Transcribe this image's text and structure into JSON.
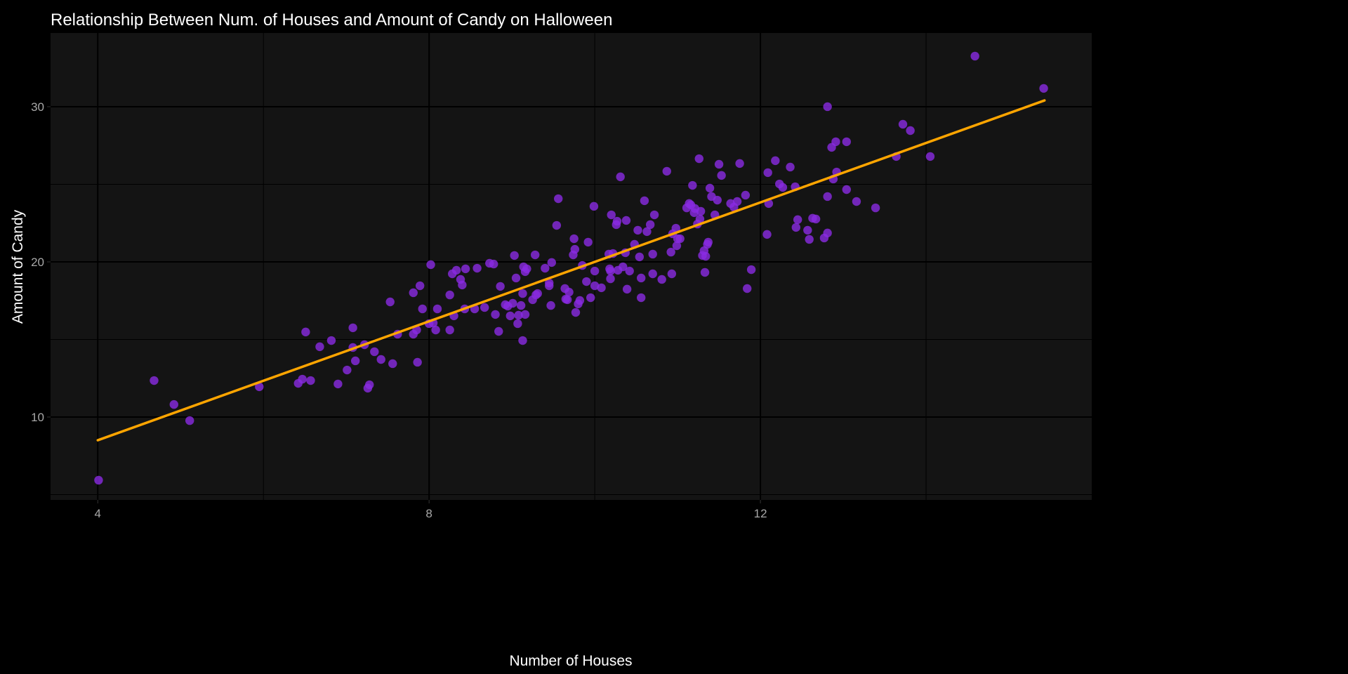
{
  "chart_data": {
    "type": "scatter",
    "title": "Relationship Between Num. of Houses and Amount of Candy on Halloween",
    "xlabel": "Number of Houses",
    "ylabel": "Amount of Candy",
    "xlim": [
      3.43,
      16.0
    ],
    "ylim": [
      4.66,
      34.75
    ],
    "x_ticks": [
      4,
      8,
      12
    ],
    "x_tick_labels": [
      "4",
      "8",
      "12"
    ],
    "x_minor": [
      6,
      10,
      14
    ],
    "y_ticks": [
      10,
      20,
      30
    ],
    "y_tick_labels": [
      "10",
      "20",
      "30"
    ],
    "y_minor": [
      5,
      15,
      25
    ],
    "grid": true,
    "colors": {
      "background": "#000000",
      "panel": "#141414",
      "grid": "#000000",
      "points": "#8a2be2",
      "line": "#ffa500"
    },
    "trend_line": {
      "type": "linear",
      "intercept": 0.84,
      "slope": 1.916,
      "x_range": [
        4.0,
        15.43
      ]
    },
    "points": [
      [
        4.01,
        5.93
      ],
      [
        4.68,
        12.35
      ],
      [
        4.92,
        10.81
      ],
      [
        5.11,
        9.77
      ],
      [
        5.95,
        11.95
      ],
      [
        6.42,
        12.17
      ],
      [
        6.47,
        12.44
      ],
      [
        6.51,
        15.48
      ],
      [
        6.57,
        12.35
      ],
      [
        6.68,
        14.53
      ],
      [
        6.82,
        14.93
      ],
      [
        6.9,
        12.13
      ],
      [
        7.01,
        13.03
      ],
      [
        7.08,
        15.75
      ],
      [
        7.08,
        14.48
      ],
      [
        7.11,
        13.62
      ],
      [
        7.22,
        14.66
      ],
      [
        7.26,
        11.86
      ],
      [
        7.28,
        12.08
      ],
      [
        7.34,
        14.21
      ],
      [
        7.42,
        13.71
      ],
      [
        7.53,
        17.42
      ],
      [
        7.56,
        13.44
      ],
      [
        7.62,
        15.34
      ],
      [
        7.81,
        18.01
      ],
      [
        7.81,
        15.34
      ],
      [
        7.85,
        15.61
      ],
      [
        7.86,
        13.53
      ],
      [
        7.89,
        18.46
      ],
      [
        7.92,
        16.97
      ],
      [
        8.0,
        16.02
      ],
      [
        8.02,
        19.82
      ],
      [
        8.05,
        16.06
      ],
      [
        8.08,
        15.61
      ],
      [
        8.1,
        16.97
      ],
      [
        8.25,
        17.87
      ],
      [
        8.25,
        15.61
      ],
      [
        8.28,
        19.23
      ],
      [
        8.3,
        16.52
      ],
      [
        8.33,
        19.46
      ],
      [
        8.38,
        18.87
      ],
      [
        8.4,
        18.51
      ],
      [
        8.43,
        16.97
      ],
      [
        8.44,
        19.55
      ],
      [
        8.55,
        16.97
      ],
      [
        8.58,
        19.59
      ],
      [
        8.67,
        17.06
      ],
      [
        8.73,
        19.91
      ],
      [
        8.78,
        19.86
      ],
      [
        8.8,
        16.61
      ],
      [
        8.84,
        15.52
      ],
      [
        8.86,
        18.42
      ],
      [
        8.92,
        17.24
      ],
      [
        8.95,
        17.15
      ],
      [
        8.98,
        16.52
      ],
      [
        9.01,
        17.33
      ],
      [
        9.03,
        20.41
      ],
      [
        9.05,
        18.96
      ],
      [
        9.07,
        16.02
      ],
      [
        9.08,
        16.56
      ],
      [
        9.11,
        17.19
      ],
      [
        9.13,
        14.93
      ],
      [
        9.13,
        17.96
      ],
      [
        9.14,
        19.68
      ],
      [
        9.16,
        16.61
      ],
      [
        9.16,
        19.37
      ],
      [
        9.18,
        19.55
      ],
      [
        9.25,
        17.56
      ],
      [
        9.28,
        20.45
      ],
      [
        9.29,
        17.87
      ],
      [
        9.31,
        17.96
      ],
      [
        9.4,
        19.59
      ],
      [
        9.45,
        18.64
      ],
      [
        9.45,
        18.46
      ],
      [
        9.47,
        17.19
      ],
      [
        9.48,
        19.96
      ],
      [
        9.54,
        22.35
      ],
      [
        9.56,
        24.07
      ],
      [
        9.64,
        18.28
      ],
      [
        9.65,
        17.6
      ],
      [
        9.67,
        17.56
      ],
      [
        9.69,
        18.05
      ],
      [
        9.74,
        20.45
      ],
      [
        9.75,
        21.49
      ],
      [
        9.76,
        20.81
      ],
      [
        9.77,
        16.74
      ],
      [
        9.8,
        17.29
      ],
      [
        9.82,
        17.51
      ],
      [
        9.85,
        19.77
      ],
      [
        9.9,
        18.73
      ],
      [
        9.92,
        21.27
      ],
      [
        9.95,
        17.69
      ],
      [
        9.99,
        23.58
      ],
      [
        10.0,
        18.46
      ],
      [
        10.0,
        19.41
      ],
      [
        10.08,
        18.33
      ],
      [
        10.17,
        20.5
      ],
      [
        10.18,
        19.55
      ],
      [
        10.19,
        19.41
      ],
      [
        10.19,
        18.91
      ],
      [
        10.2,
        23.03
      ],
      [
        10.22,
        20.54
      ],
      [
        10.26,
        22.4
      ],
      [
        10.27,
        22.62
      ],
      [
        10.28,
        19.46
      ],
      [
        10.31,
        25.48
      ],
      [
        10.34,
        19.68
      ],
      [
        10.37,
        20.59
      ],
      [
        10.38,
        22.67
      ],
      [
        10.39,
        18.24
      ],
      [
        10.42,
        19.41
      ],
      [
        10.48,
        21.13
      ],
      [
        10.52,
        22.04
      ],
      [
        10.54,
        20.32
      ],
      [
        10.56,
        17.69
      ],
      [
        10.56,
        18.96
      ],
      [
        10.6,
        23.94
      ],
      [
        10.63,
        21.95
      ],
      [
        10.67,
        22.4
      ],
      [
        10.7,
        19.23
      ],
      [
        10.7,
        20.5
      ],
      [
        10.72,
        23.03
      ],
      [
        10.81,
        18.87
      ],
      [
        10.87,
        25.84
      ],
      [
        10.92,
        20.63
      ],
      [
        10.93,
        19.23
      ],
      [
        10.94,
        21.81
      ],
      [
        10.98,
        22.17
      ],
      [
        10.99,
        21.04
      ],
      [
        11.0,
        21.49
      ],
      [
        11.03,
        21.49
      ],
      [
        11.11,
        23.48
      ],
      [
        11.14,
        23.76
      ],
      [
        11.16,
        23.67
      ],
      [
        11.18,
        24.93
      ],
      [
        11.2,
        23.17
      ],
      [
        11.21,
        23.44
      ],
      [
        11.24,
        22.44
      ],
      [
        11.26,
        26.65
      ],
      [
        11.27,
        22.76
      ],
      [
        11.28,
        23.26
      ],
      [
        11.3,
        20.41
      ],
      [
        11.32,
        20.72
      ],
      [
        11.33,
        19.32
      ],
      [
        11.34,
        20.36
      ],
      [
        11.36,
        21.13
      ],
      [
        11.37,
        21.27
      ],
      [
        11.39,
        24.75
      ],
      [
        11.41,
        24.21
      ],
      [
        11.45,
        23.03
      ],
      [
        11.48,
        23.98
      ],
      [
        11.5,
        26.29
      ],
      [
        11.53,
        25.57
      ],
      [
        11.64,
        23.76
      ],
      [
        11.68,
        23.53
      ],
      [
        11.72,
        23.89
      ],
      [
        11.75,
        26.34
      ],
      [
        11.82,
        24.3
      ],
      [
        11.84,
        18.28
      ],
      [
        11.89,
        19.5
      ],
      [
        12.08,
        21.77
      ],
      [
        12.09,
        25.75
      ],
      [
        12.1,
        23.76
      ],
      [
        12.18,
        26.52
      ],
      [
        12.23,
        25.02
      ],
      [
        12.27,
        24.8
      ],
      [
        12.36,
        26.11
      ],
      [
        12.42,
        24.84
      ],
      [
        12.43,
        22.22
      ],
      [
        12.45,
        22.72
      ],
      [
        12.57,
        22.04
      ],
      [
        12.59,
        21.45
      ],
      [
        12.63,
        22.81
      ],
      [
        12.67,
        22.76
      ],
      [
        12.77,
        21.54
      ],
      [
        12.81,
        24.21
      ],
      [
        12.81,
        30.0
      ],
      [
        12.81,
        21.86
      ],
      [
        12.86,
        27.38
      ],
      [
        12.88,
        25.34
      ],
      [
        12.91,
        27.74
      ],
      [
        12.92,
        25.79
      ],
      [
        13.04,
        24.66
      ],
      [
        13.04,
        27.74
      ],
      [
        13.16,
        23.89
      ],
      [
        13.39,
        23.48
      ],
      [
        13.64,
        26.79
      ],
      [
        13.72,
        28.87
      ],
      [
        13.81,
        28.46
      ],
      [
        14.05,
        26.79
      ],
      [
        14.59,
        33.26
      ],
      [
        15.42,
        31.18
      ]
    ]
  }
}
